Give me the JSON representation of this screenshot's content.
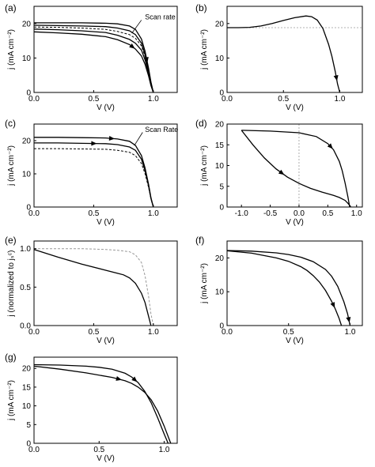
{
  "figure": {
    "panels": [
      "(a)",
      "(b)",
      "(c)",
      "(d)",
      "(e)",
      "(f)",
      "(g)"
    ]
  },
  "chart_data": [
    {
      "id": "a",
      "label": "(a)",
      "type": "line",
      "xlabel": "V (V)",
      "ylabel": "j (mA cm⁻²)",
      "xlim": [
        0,
        1.2
      ],
      "ylim": [
        0,
        25
      ],
      "xticks": [
        "0.0",
        "0.5",
        "1.0"
      ],
      "yticks": [
        "0",
        "10",
        "20"
      ],
      "annotation": "Scan rate",
      "series": [
        {
          "x": [
            0,
            0.2,
            0.4,
            0.6,
            0.7,
            0.8,
            0.85,
            0.9,
            0.93,
            0.96,
            0.98,
            1.0
          ],
          "values": [
            20.2,
            20.2,
            20.2,
            20.1,
            19.9,
            19.3,
            18.3,
            15.5,
            12.0,
            7.0,
            3.0,
            0
          ],
          "dashed": false,
          "arrow": 0.8
        },
        {
          "x": [
            0,
            0.2,
            0.4,
            0.6,
            0.7,
            0.8,
            0.85,
            0.9,
            0.93,
            0.96,
            0.98,
            1.0
          ],
          "values": [
            19.5,
            19.4,
            19.3,
            19.1,
            18.7,
            17.9,
            16.8,
            14.3,
            11.0,
            6.5,
            2.8,
            0
          ],
          "dashed": false
        },
        {
          "x": [
            0,
            0.2,
            0.4,
            0.6,
            0.7,
            0.8,
            0.85,
            0.9,
            0.93,
            0.96,
            0.98,
            1.0
          ],
          "values": [
            19.0,
            18.9,
            18.7,
            18.3,
            17.7,
            16.8,
            15.7,
            13.5,
            10.5,
            6.2,
            2.6,
            0
          ],
          "dashed": true
        },
        {
          "x": [
            0,
            0.2,
            0.4,
            0.6,
            0.7,
            0.8,
            0.85,
            0.9,
            0.93,
            0.96,
            0.98,
            1.0
          ],
          "values": [
            18.4,
            18.2,
            17.9,
            17.4,
            16.6,
            15.4,
            14.3,
            12.3,
            9.5,
            5.6,
            2.4,
            0
          ],
          "dashed": false
        },
        {
          "x": [
            0,
            0.2,
            0.4,
            0.6,
            0.7,
            0.8,
            0.85,
            0.9,
            0.93,
            0.96,
            0.98,
            1.0
          ],
          "values": [
            17.6,
            17.3,
            16.9,
            16.2,
            15.3,
            13.9,
            12.6,
            10.6,
            8.2,
            4.8,
            2.0,
            0
          ],
          "dashed": false,
          "arrow": 0.55
        }
      ]
    },
    {
      "id": "b",
      "label": "(b)",
      "type": "line",
      "xlabel": "V (V)",
      "ylabel": "j (mA cm⁻²)",
      "xlim": [
        0,
        1.2
      ],
      "ylim": [
        0,
        25
      ],
      "xticks": [
        "0.0",
        "0.5",
        "1.0"
      ],
      "yticks": [
        "0",
        "10",
        "20"
      ],
      "hline": 18.8,
      "series": [
        {
          "x": [
            0,
            0.1,
            0.2,
            0.3,
            0.4,
            0.5,
            0.6,
            0.7,
            0.75,
            0.8,
            0.85,
            0.9,
            0.93,
            0.96,
            0.98,
            1.0
          ],
          "values": [
            18.8,
            18.8,
            18.9,
            19.3,
            20.0,
            20.9,
            21.7,
            22.2,
            22.0,
            21.0,
            18.6,
            14.0,
            10.5,
            6.0,
            2.5,
            0
          ],
          "dashed": false,
          "arrow": 0.92
        }
      ]
    },
    {
      "id": "c",
      "label": "(c)",
      "type": "line",
      "xlabel": "V (V)",
      "ylabel": "j (mA cm⁻²)",
      "xlim": [
        0,
        1.2
      ],
      "ylim": [
        0,
        25
      ],
      "xticks": [
        "0.0",
        "0.5",
        "1.0"
      ],
      "yticks": [
        "0",
        "10",
        "20"
      ],
      "annotation": "Scan Rate",
      "series": [
        {
          "x": [
            0,
            0.2,
            0.4,
            0.6,
            0.7,
            0.8,
            0.85,
            0.9,
            0.93,
            0.96,
            0.98,
            1.0
          ],
          "values": [
            21.0,
            21.0,
            20.9,
            20.8,
            20.5,
            19.8,
            18.6,
            15.5,
            11.8,
            6.8,
            2.8,
            0
          ],
          "dashed": false,
          "arrow": 0.35
        },
        {
          "x": [
            0,
            0.2,
            0.4,
            0.6,
            0.7,
            0.8,
            0.85,
            0.9,
            0.93,
            0.96,
            0.98,
            1.0
          ],
          "values": [
            19.3,
            19.3,
            19.2,
            19.1,
            18.8,
            18.1,
            17.1,
            14.4,
            11.0,
            6.4,
            2.6,
            0
          ],
          "dashed": false,
          "arrow": 0.25
        },
        {
          "x": [
            0,
            0.2,
            0.4,
            0.6,
            0.7,
            0.8,
            0.85,
            0.9,
            0.93,
            0.96,
            0.98,
            1.0
          ],
          "values": [
            17.6,
            17.6,
            17.5,
            17.4,
            17.1,
            16.5,
            15.5,
            13.1,
            10.1,
            5.9,
            2.4,
            0
          ],
          "dashed": true
        }
      ]
    },
    {
      "id": "d",
      "label": "(d)",
      "type": "line",
      "xlabel": "V (V)",
      "ylabel": "j (mA cm⁻²)",
      "xlim": [
        -1.25,
        1.1
      ],
      "ylim": [
        0,
        20
      ],
      "xticks": [
        "-1.0",
        "-0.5",
        "0.0",
        "0.5",
        "1.0"
      ],
      "yticks": [
        "0",
        "5",
        "10",
        "15",
        "20"
      ],
      "vline": 0,
      "series": [
        {
          "x": [
            -1.0,
            -0.5,
            0.0,
            0.3,
            0.5,
            0.6,
            0.7,
            0.75,
            0.8,
            0.85,
            0.88
          ],
          "values": [
            18.5,
            18.3,
            17.9,
            17.0,
            15.3,
            13.8,
            11.0,
            8.8,
            5.8,
            2.4,
            0
          ],
          "dashed": false,
          "arrow": 0.5
        },
        {
          "x": [
            -1.0,
            -0.8,
            -0.6,
            -0.4,
            -0.2,
            0.0,
            0.2,
            0.4,
            0.6,
            0.7,
            0.8,
            0.85,
            0.88,
            0.9
          ],
          "values": [
            18.5,
            15.0,
            11.8,
            9.2,
            7.2,
            5.7,
            4.5,
            3.6,
            2.8,
            2.3,
            1.6,
            0.9,
            0.4,
            0
          ],
          "dashed": false,
          "arrow": 0.28
        }
      ]
    },
    {
      "id": "e",
      "label": "(e)",
      "type": "line",
      "xlabel": "V (V)",
      "ylabel": "j (normalized to jₛᶜ)",
      "xlim": [
        0,
        1.2
      ],
      "ylim": [
        0,
        1.1
      ],
      "xticks": [
        "0.0",
        "0.5",
        "1.0"
      ],
      "yticks": [
        "0.0",
        "0.5",
        "1.0"
      ],
      "series": [
        {
          "x": [
            0,
            0.2,
            0.4,
            0.6,
            0.7,
            0.75,
            0.8,
            0.85,
            0.9,
            0.93,
            0.96,
            0.98
          ],
          "values": [
            0.99,
            0.89,
            0.8,
            0.72,
            0.68,
            0.66,
            0.62,
            0.55,
            0.42,
            0.3,
            0.12,
            0
          ],
          "dashed": false
        },
        {
          "x": [
            0,
            0.2,
            0.4,
            0.6,
            0.7,
            0.8,
            0.85,
            0.9,
            0.93,
            0.96,
            0.98,
            1.0
          ],
          "values": [
            1.0,
            1.0,
            1.0,
            0.99,
            0.98,
            0.96,
            0.92,
            0.82,
            0.65,
            0.38,
            0.15,
            0
          ],
          "dashed": true
        }
      ]
    },
    {
      "id": "f",
      "label": "(f)",
      "type": "line",
      "xlabel": "V (V)",
      "ylabel": "j (mA cm⁻²)",
      "xlim": [
        0,
        1.1
      ],
      "ylim": [
        0,
        25
      ],
      "xticks": [
        "0.0",
        "0.5",
        "1.0"
      ],
      "yticks": [
        "0",
        "10",
        "20"
      ],
      "series": [
        {
          "x": [
            0,
            0.2,
            0.4,
            0.5,
            0.6,
            0.7,
            0.8,
            0.85,
            0.9,
            0.95,
            0.98,
            1.0
          ],
          "values": [
            22.2,
            22.0,
            21.5,
            21.0,
            20.2,
            18.9,
            16.6,
            14.6,
            11.6,
            7.0,
            3.5,
            0
          ],
          "dashed": false,
          "arrow": 0.98
        },
        {
          "x": [
            0,
            0.2,
            0.4,
            0.5,
            0.6,
            0.65,
            0.7,
            0.75,
            0.8,
            0.85,
            0.88,
            0.91,
            0.93
          ],
          "values": [
            22.1,
            21.4,
            20.0,
            19.0,
            17.4,
            16.3,
            14.8,
            12.9,
            10.4,
            7.2,
            4.9,
            2.2,
            0
          ],
          "dashed": false,
          "arrow": 0.8
        }
      ]
    },
    {
      "id": "g",
      "label": "(g)",
      "type": "line",
      "xlabel": "V (V)",
      "ylabel": "j (mA cm⁻²)",
      "xlim": [
        0,
        1.1
      ],
      "ylim": [
        0,
        23
      ],
      "xticks": [
        "0.0",
        "0.5",
        "1.0"
      ],
      "yticks": [
        "0",
        "5",
        "10",
        "15",
        "20"
      ],
      "series": [
        {
          "x": [
            0,
            0.2,
            0.4,
            0.5,
            0.6,
            0.7,
            0.75,
            0.8,
            0.85,
            0.9,
            0.95,
            1.0,
            1.03
          ],
          "values": [
            21.0,
            20.9,
            20.6,
            20.3,
            19.8,
            18.7,
            17.7,
            16.2,
            13.9,
            10.8,
            6.8,
            2.5,
            0
          ],
          "dashed": false,
          "arrow": 0.6
        },
        {
          "x": [
            0,
            0.2,
            0.4,
            0.6,
            0.7,
            0.75,
            0.8,
            0.85,
            0.9,
            0.95,
            1.0,
            1.05
          ],
          "values": [
            20.6,
            19.8,
            18.8,
            17.6,
            16.7,
            16.0,
            15.0,
            13.6,
            11.6,
            8.6,
            4.6,
            0
          ],
          "dashed": false,
          "arrow": 0.4
        }
      ]
    }
  ]
}
